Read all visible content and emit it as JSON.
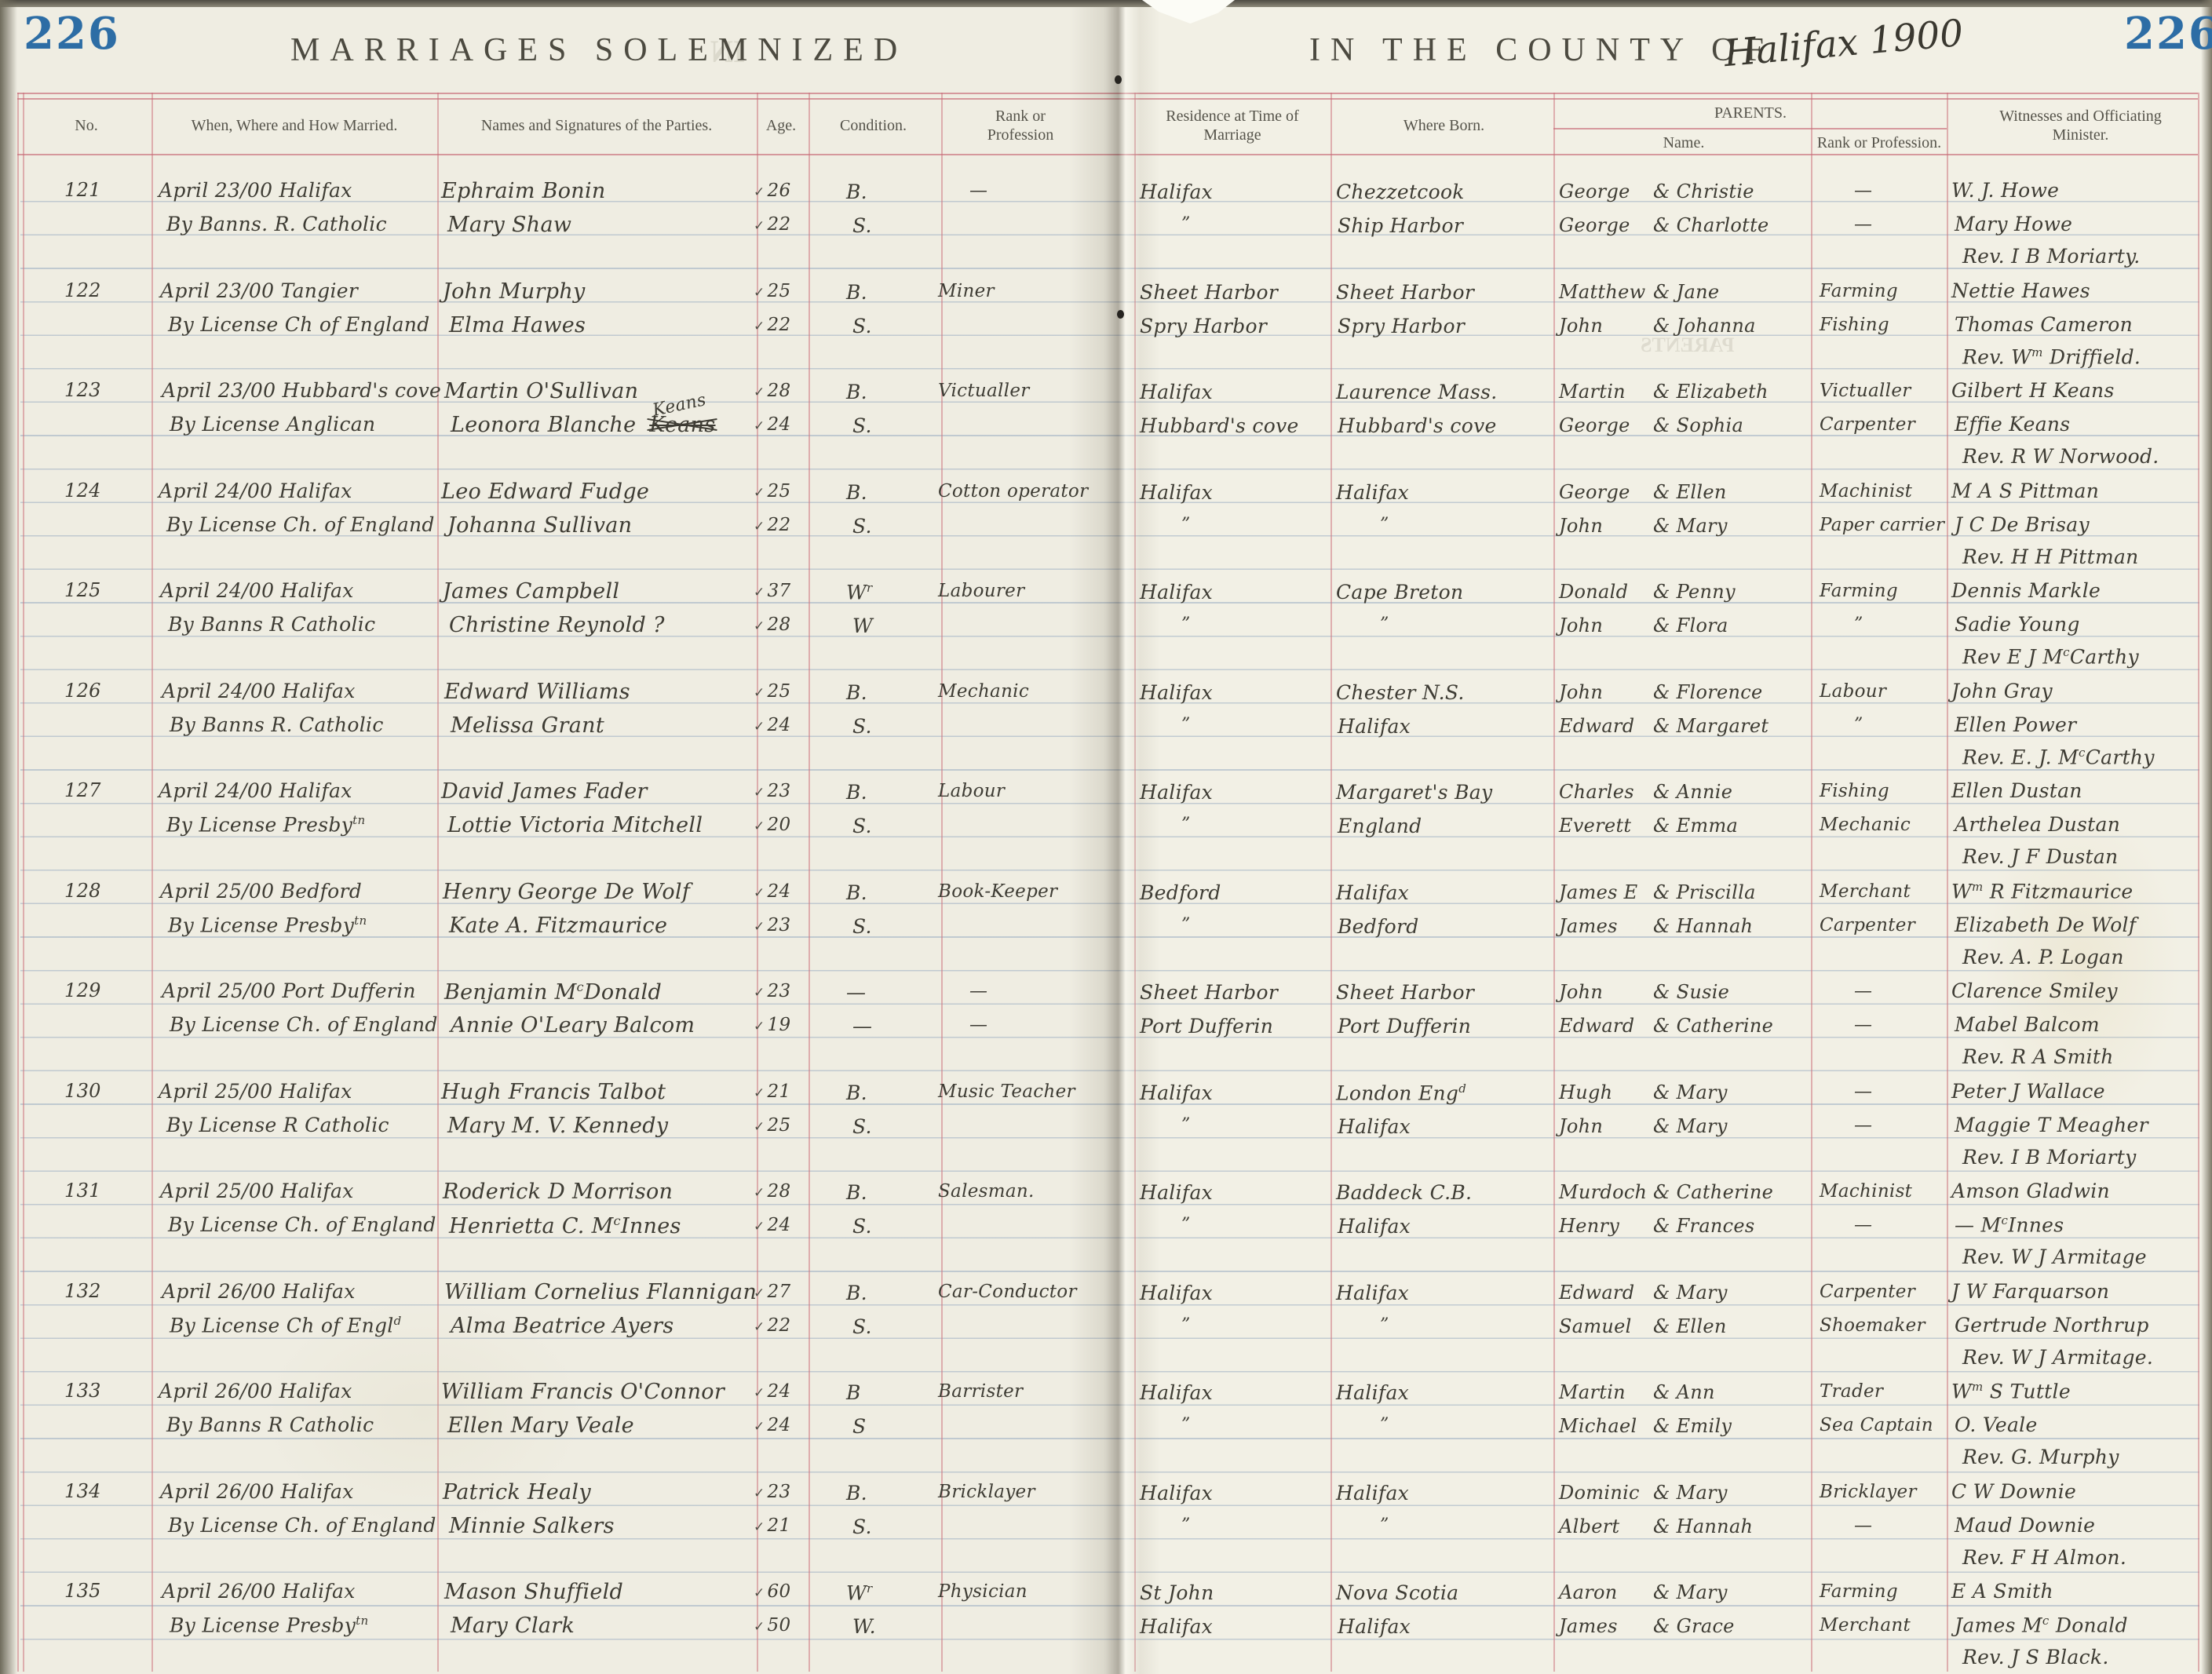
{
  "page": {
    "left_page_number": "226",
    "right_page_number": "226",
    "title_left": "MARRIAGES SOLEMNIZED",
    "title_right": "IN THE COUNTY OF",
    "county_handwritten": "Halifax 1900"
  },
  "table": {
    "headers": {
      "no": "No.",
      "when": "When, Where and How Married.",
      "names": "Names and Signatures of the Parties.",
      "age": "Age.",
      "condition": "Condition.",
      "rank": "Rank or Profession",
      "residence": "Residence at Time of Marriage",
      "born": "Where Born.",
      "parents": "PARENTS.",
      "parents_name": "Name.",
      "parents_rank": "Rank or Profession.",
      "witnesses": "Witnesses and Officiating Minister."
    }
  },
  "marks": {
    "age_tick": "✓",
    "ditto": "”",
    "dash": "—"
  },
  "records": [
    {
      "no": "121",
      "when": [
        "April 23/00 Halifax",
        "By Banns. R. Catholic"
      ],
      "names": [
        "Ephraim Bonin",
        "Mary Shaw"
      ],
      "ages": [
        "26",
        "22"
      ],
      "cond": [
        "B.",
        "S."
      ],
      "rank": [
        "—",
        ""
      ],
      "res": [
        "Halifax",
        "”"
      ],
      "born": [
        "Chezzetcook",
        "Ship Harbor"
      ],
      "fathers": [
        "George",
        "George"
      ],
      "mothers": [
        "& Christie",
        "& Charlotte"
      ],
      "prank": [
        "—",
        "—"
      ],
      "wit": [
        "W. J. Howe",
        "Mary Howe"
      ],
      "minister": "Rev. I B Moriarty."
    },
    {
      "no": "122",
      "when": [
        "April 23/00 Tangier",
        "By License Ch of England"
      ],
      "names": [
        "John Murphy",
        "Elma Hawes"
      ],
      "ages": [
        "25",
        "22"
      ],
      "cond": [
        "B.",
        "S."
      ],
      "rank": [
        "Miner",
        ""
      ],
      "res": [
        "Sheet Harbor",
        "Spry Harbor"
      ],
      "born": [
        "Sheet Harbor",
        "Spry Harbor"
      ],
      "fathers": [
        "Matthew",
        "John"
      ],
      "mothers": [
        "& Jane",
        "& Johanna"
      ],
      "prank": [
        "Farming",
        "Fishing"
      ],
      "wit": [
        "Nettie Hawes",
        "Thomas Cameron"
      ],
      "minister": "Rev. W^{m} Driffield."
    },
    {
      "no": "123",
      "when": [
        "April 23/00 Hubbard's cove",
        "By License  Anglican"
      ],
      "names": [
        "Martin O'Sullivan",
        "Leonora Blanche"
      ],
      "name_struck": "Keans",
      "name_insert": "Keans",
      "ages": [
        "28",
        "24"
      ],
      "cond": [
        "B.",
        "S."
      ],
      "rank": [
        "Victualler",
        ""
      ],
      "res": [
        "Halifax",
        "Hubbard's cove"
      ],
      "born": [
        "Laurence Mass.",
        "Hubbard's cove"
      ],
      "fathers": [
        "Martin",
        "George"
      ],
      "mothers": [
        "& Elizabeth",
        "& Sophia"
      ],
      "prank": [
        "Victualler",
        "Carpenter"
      ],
      "wit": [
        "Gilbert H Keans",
        "Effie Keans"
      ],
      "minister": "Rev. R W Norwood."
    },
    {
      "no": "124",
      "when": [
        "April 24/00 Halifax",
        "By License Ch. of England"
      ],
      "names": [
        "Leo Edward Fudge",
        "Johanna Sullivan"
      ],
      "ages": [
        "25",
        "22"
      ],
      "cond": [
        "B.",
        "S."
      ],
      "rank": [
        "Cotton operator",
        ""
      ],
      "res": [
        "Halifax",
        "”"
      ],
      "born": [
        "Halifax",
        "”"
      ],
      "fathers": [
        "George",
        "John"
      ],
      "mothers": [
        "& Ellen",
        "& Mary"
      ],
      "prank": [
        "Machinist",
        "Paper carrier"
      ],
      "wit": [
        "M A S Pittman",
        "J C De Brisay"
      ],
      "minister": "Rev. H H Pittman"
    },
    {
      "no": "125",
      "when": [
        "April 24/00 Halifax",
        "By Banns  R Catholic"
      ],
      "names": [
        "James Campbell",
        "Christine Reynold ?"
      ],
      "ages": [
        "37",
        "28"
      ],
      "cond": [
        "W^{r}",
        "W"
      ],
      "rank": [
        "Labourer",
        ""
      ],
      "res": [
        "Halifax",
        "”"
      ],
      "born": [
        "Cape Breton",
        "”"
      ],
      "fathers": [
        "Donald",
        "John"
      ],
      "mothers": [
        "& Penny",
        "& Flora"
      ],
      "prank": [
        "Farming",
        "”"
      ],
      "wit": [
        "Dennis Markle",
        "Sadie Young"
      ],
      "minister": "Rev E J M^{c}Carthy"
    },
    {
      "no": "126",
      "when": [
        "April 24/00 Halifax",
        "By Banns R. Catholic"
      ],
      "names": [
        "Edward Williams",
        "Melissa Grant"
      ],
      "ages": [
        "25",
        "24"
      ],
      "cond": [
        "B.",
        "S."
      ],
      "rank": [
        "Mechanic",
        ""
      ],
      "res": [
        "Halifax",
        "”"
      ],
      "born": [
        "Chester N.S.",
        "Halifax"
      ],
      "fathers": [
        "John",
        "Edward"
      ],
      "mothers": [
        "& Florence",
        "& Margaret"
      ],
      "prank": [
        "Labour",
        "”"
      ],
      "wit": [
        "John Gray",
        "Ellen Power"
      ],
      "minister": "Rev. E. J. M^{c}Carthy"
    },
    {
      "no": "127",
      "when": [
        "April 24/00 Halifax",
        "By License Presby^{tn}"
      ],
      "names": [
        "David James Fader",
        "Lottie Victoria Mitchell"
      ],
      "ages": [
        "23",
        "20"
      ],
      "cond": [
        "B.",
        "S."
      ],
      "rank": [
        "Labour",
        ""
      ],
      "res": [
        "Halifax",
        "”"
      ],
      "born": [
        "Margaret's Bay",
        "England"
      ],
      "fathers": [
        "Charles",
        "Everett"
      ],
      "mothers": [
        "& Annie",
        "& Emma"
      ],
      "prank": [
        "Fishing",
        "Mechanic"
      ],
      "wit": [
        "Ellen Dustan",
        "Arthelea Dustan"
      ],
      "minister": "Rev. J F Dustan"
    },
    {
      "no": "128",
      "when": [
        "April 25/00 Bedford",
        "By License Presby^{tn}"
      ],
      "names": [
        "Henry George De Wolf",
        "Kate A. Fitzmaurice"
      ],
      "ages": [
        "24",
        "23"
      ],
      "cond": [
        "B.",
        "S."
      ],
      "rank": [
        "Book-Keeper",
        ""
      ],
      "res": [
        "Bedford",
        "”"
      ],
      "born": [
        "Halifax",
        "Bedford"
      ],
      "fathers": [
        "James E",
        "James"
      ],
      "mothers": [
        "& Priscilla",
        "& Hannah"
      ],
      "prank": [
        "Merchant",
        "Carpenter"
      ],
      "wit": [
        "W^{m} R Fitzmaurice",
        "Elizabeth De Wolf"
      ],
      "minister": "Rev. A. P. Logan"
    },
    {
      "no": "129",
      "when": [
        "April 25/00 Port Dufferin",
        "By License Ch. of England"
      ],
      "names": [
        "Benjamin M^{c}Donald",
        "Annie O'Leary Balcom"
      ],
      "ages": [
        "23",
        "19"
      ],
      "cond": [
        "—",
        "—"
      ],
      "rank": [
        "—",
        "—"
      ],
      "res": [
        "Sheet Harbor",
        "Port Dufferin"
      ],
      "born": [
        "Sheet Harbor",
        "Port Dufferin"
      ],
      "fathers": [
        "John",
        "Edward"
      ],
      "mothers": [
        "& Susie",
        "& Catherine"
      ],
      "prank": [
        "—",
        "—"
      ],
      "wit": [
        "Clarence Smiley",
        "Mabel Balcom"
      ],
      "minister": "Rev. R A Smith"
    },
    {
      "no": "130",
      "when": [
        "April 25/00 Halifax",
        "By License R Catholic"
      ],
      "names": [
        "Hugh Francis Talbot",
        "Mary M. V. Kennedy"
      ],
      "ages": [
        "21",
        "25"
      ],
      "cond": [
        "B.",
        "S."
      ],
      "rank": [
        "Music Teacher",
        ""
      ],
      "res": [
        "Halifax",
        "”"
      ],
      "born": [
        "London Eng^{d}",
        "Halifax"
      ],
      "fathers": [
        "Hugh",
        "John"
      ],
      "mothers": [
        "& Mary",
        "& Mary"
      ],
      "prank": [
        "—",
        "—"
      ],
      "wit": [
        "Peter J Wallace",
        "Maggie T Meagher"
      ],
      "minister": "Rev. I B Moriarty"
    },
    {
      "no": "131",
      "when": [
        "April 25/00 Halifax",
        "By License Ch. of England"
      ],
      "names": [
        "Roderick D Morrison",
        "Henrietta C. M^{c}Innes"
      ],
      "ages": [
        "28",
        "24"
      ],
      "cond": [
        "B.",
        "S."
      ],
      "rank": [
        "Salesman.",
        ""
      ],
      "res": [
        "Halifax",
        "”"
      ],
      "born": [
        "Baddeck C.B.",
        "Halifax"
      ],
      "fathers": [
        "Murdoch",
        "Henry"
      ],
      "mothers": [
        "& Catherine",
        "& Frances"
      ],
      "prank": [
        "Machinist",
        "—"
      ],
      "wit": [
        "Amson Gladwin",
        "— M^{c}Innes"
      ],
      "minister": "Rev. W J Armitage"
    },
    {
      "no": "132",
      "when": [
        "April 26/00 Halifax",
        "By License Ch of Engl^{d}"
      ],
      "names": [
        "William Cornelius Flannigan",
        "Alma Beatrice Ayers"
      ],
      "ages": [
        "27",
        "22"
      ],
      "cond": [
        "B.",
        "S."
      ],
      "rank": [
        "Car-Conductor",
        ""
      ],
      "res": [
        "Halifax",
        "”"
      ],
      "born": [
        "Halifax",
        "”"
      ],
      "fathers": [
        "Edward",
        "Samuel"
      ],
      "mothers": [
        "& Mary",
        "& Ellen"
      ],
      "prank": [
        "Carpenter",
        "Shoemaker"
      ],
      "wit": [
        "J W Farquarson",
        "Gertrude Northrup"
      ],
      "minister": "Rev. W J Armitage."
    },
    {
      "no": "133",
      "when": [
        "April 26/00 Halifax",
        "By Banns R Catholic"
      ],
      "names": [
        "William Francis O'Connor",
        "Ellen Mary Veale"
      ],
      "ages": [
        "24",
        "24"
      ],
      "cond": [
        "B",
        "S"
      ],
      "rank": [
        "Barrister",
        ""
      ],
      "res": [
        "Halifax",
        "”"
      ],
      "born": [
        "Halifax",
        "”"
      ],
      "fathers": [
        "Martin",
        "Michael"
      ],
      "mothers": [
        "& Ann",
        "& Emily"
      ],
      "prank": [
        "Trader",
        "Sea Captain"
      ],
      "wit": [
        "W^{m} S Tuttle",
        "O. Veale"
      ],
      "minister": "Rev. G. Murphy"
    },
    {
      "no": "134",
      "when": [
        "April 26/00 Halifax",
        "By License Ch. of England"
      ],
      "names": [
        "Patrick Healy",
        "Minnie Salkers"
      ],
      "ages": [
        "23",
        "21"
      ],
      "cond": [
        "B.",
        "S."
      ],
      "rank": [
        "Bricklayer",
        ""
      ],
      "res": [
        "Halifax",
        "”"
      ],
      "born": [
        "Halifax",
        "”"
      ],
      "fathers": [
        "Dominic",
        "Albert"
      ],
      "mothers": [
        "& Mary",
        "& Hannah"
      ],
      "prank": [
        "Bricklayer",
        "—"
      ],
      "wit": [
        "C W Downie",
        "Maud Downie"
      ],
      "minister": "Rev. F H Almon."
    },
    {
      "no": "135",
      "when": [
        "April 26/00 Halifax",
        "By License Presby^{tn}"
      ],
      "names": [
        "Mason Shuffield",
        "Mary Clark"
      ],
      "ages": [
        "60",
        "50"
      ],
      "cond": [
        "W^{r}",
        "W."
      ],
      "rank": [
        "Physician",
        ""
      ],
      "res": [
        "St John",
        "Halifax"
      ],
      "born": [
        "Nova Scotia",
        "Halifax"
      ],
      "fathers": [
        "Aaron",
        "James"
      ],
      "mothers": [
        "& Mary",
        "& Grace"
      ],
      "prank": [
        "Farming",
        "Merchant"
      ],
      "wit": [
        "E A Smith",
        "James M^{c} Donald"
      ],
      "minister": "Rev. J S Black."
    }
  ]
}
